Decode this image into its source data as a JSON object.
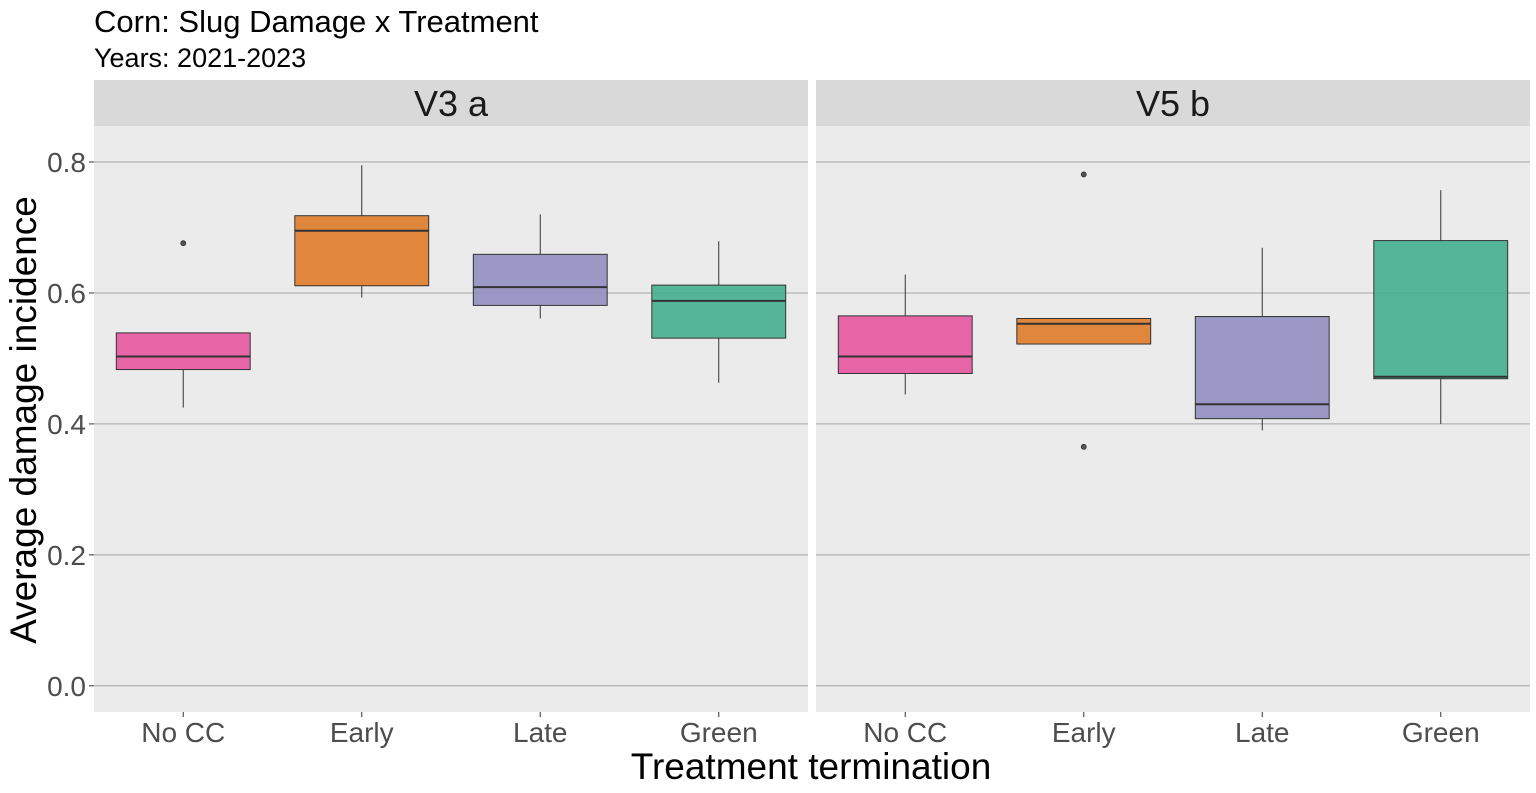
{
  "chart_data": {
    "type": "boxplot",
    "title": "Corn: Slug Damage x Treatment",
    "subtitle": "Years: 2021-2023",
    "xlabel": "Treatment termination",
    "ylabel": "Average damage incidence",
    "ylim": [
      -0.04,
      0.855
    ],
    "y_ticks": [
      0.0,
      0.2,
      0.4,
      0.6,
      0.8
    ],
    "y_tick_labels": [
      "0.0",
      "0.2",
      "0.4",
      "0.6",
      "0.8"
    ],
    "grid": true,
    "legend": "none",
    "categories": [
      "No CC",
      "Early",
      "Late",
      "Green"
    ],
    "category_colors": {
      "No CC": "#e7559f",
      "Early": "#df7c2a",
      "Late": "#948fc2",
      "Green": "#44b08e"
    },
    "colors": {
      "panel_background": "#ebebeb",
      "strip_background": "#d9d9d9",
      "gridline": "#a6a6a6"
    },
    "facets": [
      {
        "label": "V3  a",
        "boxes": [
          {
            "category": "No CC",
            "lower_whisker": 0.425,
            "q1": 0.483,
            "median": 0.503,
            "q3": 0.539,
            "upper_whisker": 0.539,
            "outliers": [
              0.676
            ]
          },
          {
            "category": "Early",
            "lower_whisker": 0.593,
            "q1": 0.611,
            "median": 0.695,
            "q3": 0.718,
            "upper_whisker": 0.795,
            "outliers": []
          },
          {
            "category": "Late",
            "lower_whisker": 0.561,
            "q1": 0.581,
            "median": 0.609,
            "q3": 0.659,
            "upper_whisker": 0.72,
            "outliers": []
          },
          {
            "category": "Green",
            "lower_whisker": 0.463,
            "q1": 0.531,
            "median": 0.588,
            "q3": 0.612,
            "upper_whisker": 0.679,
            "outliers": []
          }
        ]
      },
      {
        "label": "V5  b",
        "boxes": [
          {
            "category": "No CC",
            "lower_whisker": 0.445,
            "q1": 0.477,
            "median": 0.503,
            "q3": 0.565,
            "upper_whisker": 0.628,
            "outliers": []
          },
          {
            "category": "Early",
            "lower_whisker": 0.522,
            "q1": 0.522,
            "median": 0.553,
            "q3": 0.561,
            "upper_whisker": 0.561,
            "outliers": [
              0.781,
              0.365
            ]
          },
          {
            "category": "Late",
            "lower_whisker": 0.39,
            "q1": 0.408,
            "median": 0.43,
            "q3": 0.564,
            "upper_whisker": 0.669,
            "outliers": []
          },
          {
            "category": "Green",
            "lower_whisker": 0.4,
            "q1": 0.469,
            "median": 0.472,
            "q3": 0.68,
            "upper_whisker": 0.757,
            "outliers": []
          }
        ]
      }
    ]
  }
}
